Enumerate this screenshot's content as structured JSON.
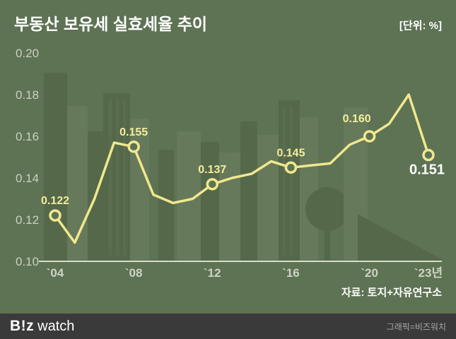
{
  "title": "부동산 보유세 실효세율 추이",
  "unit_label": "[단위: %]",
  "source": "자료: 토지+자유연구소",
  "footer": {
    "logo_b": "B!z",
    "logo_watch": "watch",
    "credit": "그래픽=비즈워치"
  },
  "colors": {
    "background": "#5e7254",
    "building_dark": "#55684a",
    "building_light": "#66795a",
    "line": "#f0e88e",
    "point_label": "#f4ed9c",
    "final_label": "#ffffff",
    "axis_text": "#ccd4c3",
    "baseline": "#d6dcc9",
    "footer_bg": "#3a3a3a",
    "credit_text": "#a8a8a8"
  },
  "chart_data": {
    "type": "line",
    "title": "부동산 보유세 실효세율 추이",
    "unit": "%",
    "x": [
      2004,
      2005,
      2006,
      2007,
      2008,
      2009,
      2010,
      2011,
      2012,
      2013,
      2014,
      2015,
      2016,
      2017,
      2018,
      2019,
      2020,
      2021,
      2022,
      2023
    ],
    "values": [
      0.122,
      0.109,
      0.13,
      0.157,
      0.155,
      0.132,
      0.128,
      0.13,
      0.137,
      0.14,
      0.142,
      0.148,
      0.145,
      0.146,
      0.147,
      0.156,
      0.16,
      0.166,
      0.18,
      0.151
    ],
    "ylim": [
      0.1,
      0.2
    ],
    "yticks": [
      0.1,
      0.12,
      0.14,
      0.16,
      0.18,
      0.2
    ],
    "xticks": [
      {
        "year": 2004,
        "label": "`04"
      },
      {
        "year": 2008,
        "label": "`08"
      },
      {
        "year": 2012,
        "label": "`12"
      },
      {
        "year": 2016,
        "label": "`16"
      },
      {
        "year": 2020,
        "label": "`20"
      },
      {
        "year": 2023,
        "label": "`23년"
      }
    ],
    "labeled_points": [
      {
        "year": 2004,
        "value": 0.122,
        "label": "0.122",
        "emphasis": false
      },
      {
        "year": 2008,
        "value": 0.155,
        "label": "0.155",
        "emphasis": false
      },
      {
        "year": 2012,
        "value": 0.137,
        "label": "0.137",
        "emphasis": false
      },
      {
        "year": 2016,
        "value": 0.145,
        "label": "0.145",
        "emphasis": false
      },
      {
        "year": 2020,
        "value": 0.16,
        "label": "0.160",
        "emphasis": false
      },
      {
        "year": 2023,
        "value": 0.151,
        "label": "0.151",
        "emphasis": true
      }
    ],
    "legend": "none",
    "grid": false
  }
}
